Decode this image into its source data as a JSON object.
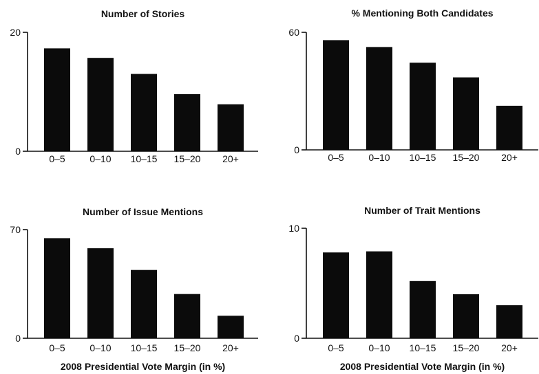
{
  "chart_data": [
    {
      "type": "bar",
      "title": "Number of Stories",
      "categories": [
        "0–5",
        "0–10",
        "10–15",
        "15–20",
        "20+"
      ],
      "values": [
        17.3,
        15.7,
        13.0,
        9.6,
        7.9
      ],
      "ylim": [
        0,
        20
      ],
      "yticks": [
        "20",
        "0"
      ],
      "xlabel": "",
      "grid": false
    },
    {
      "type": "bar",
      "title": "% Mentioning Both Candidates",
      "categories": [
        "0–5",
        "0–10",
        "10–15",
        "15–20",
        "20+"
      ],
      "values": [
        56,
        52.5,
        44.5,
        37,
        22.5
      ],
      "ylim": [
        0,
        60
      ],
      "yticks": [
        "60",
        "0"
      ],
      "xlabel": "",
      "grid": false
    },
    {
      "type": "bar",
      "title": "Number of Issue Mentions",
      "categories": [
        "0–5",
        "0–10",
        "10–15",
        "15–20",
        "20+"
      ],
      "values": [
        64.5,
        58,
        44,
        28.5,
        14.5
      ],
      "ylim": [
        0,
        70
      ],
      "yticks": [
        "70",
        "0"
      ],
      "xlabel": "2008 Presidential Vote Margin (in %)",
      "grid": false
    },
    {
      "type": "bar",
      "title": "Number of Trait Mentions",
      "categories": [
        "0–5",
        "0–10",
        "10–15",
        "15–20",
        "20+"
      ],
      "values": [
        7.8,
        7.9,
        5.2,
        4.0,
        3.0
      ],
      "ylim": [
        0,
        10
      ],
      "yticks": [
        "10",
        "0"
      ],
      "xlabel": "2008 Presidential Vote Margin (in %)",
      "grid": false
    }
  ]
}
